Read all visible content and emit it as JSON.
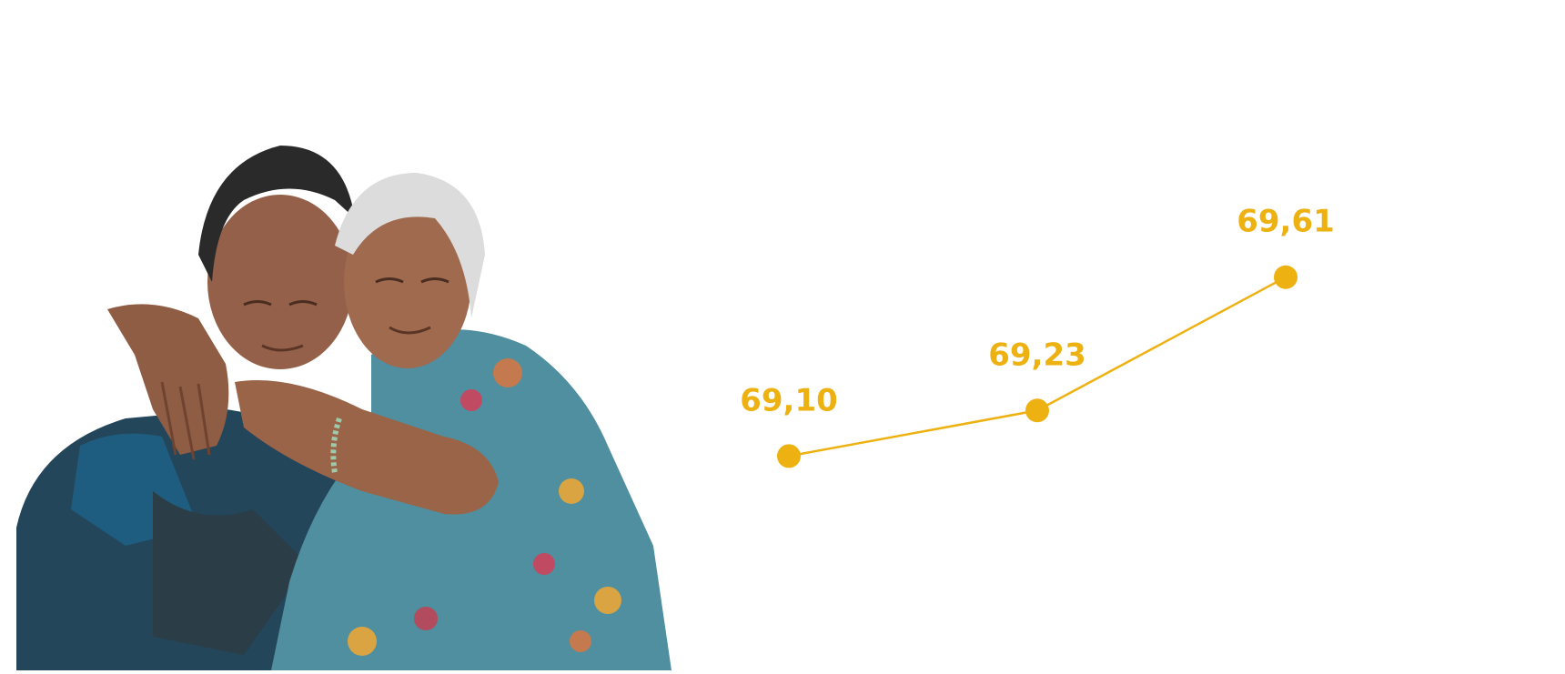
{
  "colors": {
    "accent": "#EDB211",
    "background": "#FFFFFF"
  },
  "photo": {
    "icon": "photo-two-elderly-women-hugging"
  },
  "chart_data": {
    "type": "line",
    "x": [
      "1",
      "2",
      "3"
    ],
    "values": [
      69.1,
      69.23,
      69.61
    ],
    "data_labels": [
      "69,10",
      "69,23",
      "69,61"
    ],
    "ylim": [
      69.0,
      69.7
    ],
    "grid": false,
    "legend": "none",
    "color": "#EDB211"
  }
}
